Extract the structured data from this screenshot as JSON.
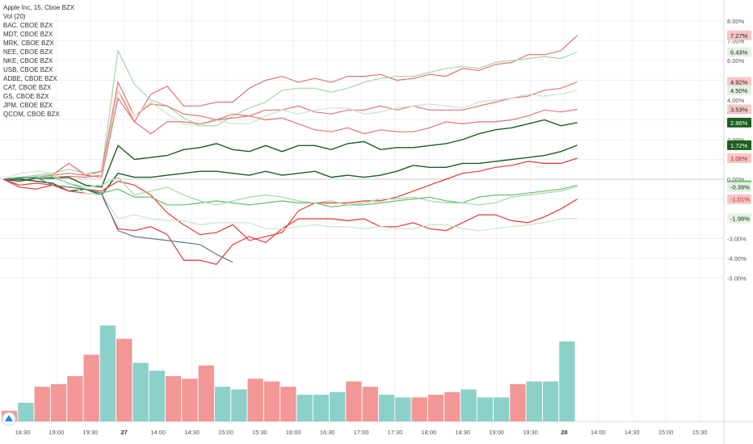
{
  "chart_data": {
    "type": "line",
    "title": "Apple Inc, 15, Cboe BZX",
    "legend_items": [
      "Apple Inc, 15, Cboe BZX",
      "Vol (20)",
      "BAC, CBOE BZX",
      "MDT, CBOE BZX",
      "MRK, CBOE BZX",
      "NEE, CBOE BZX",
      "NKE, CBOE BZX",
      "USB, CBOE BZX",
      "ADBE, CBOE BZX",
      "CAT, CBOE BZX",
      "GS, CBOE BZX",
      "JPM, CBOE BZX",
      "QCOM, CBOE BZX"
    ],
    "legend_position": "top-left",
    "x_labels": [
      "18:30",
      "19:00",
      "19:30",
      "27",
      "14:00",
      "14:30",
      "15:00",
      "15:30",
      "16:00",
      "16:30",
      "17:00",
      "17:30",
      "18:00",
      "18:30",
      "19:00",
      "19:30",
      "28",
      "14:00",
      "14:30",
      "15:00",
      "15:30"
    ],
    "y_ticks": [
      "8.00%",
      "7.00%",
      "6.00%",
      "5.00%",
      "4.00%",
      "3.00%",
      "2.00%",
      "1.00%",
      "0.00%",
      "-1.00%",
      "-2.00%",
      "-3.00%",
      "-4.00%",
      "-5.00%"
    ],
    "y_range": [
      -5.4,
      8.3
    ],
    "series": [
      {
        "color": "#e57373",
        "end_label": "7.27%",
        "values": [
          0,
          -0.1,
          0.05,
          0.1,
          0.15,
          0.1,
          0.2,
          4.5,
          2.9,
          4.3,
          4.7,
          3.7,
          3.7,
          3.9,
          3.9,
          4.6,
          5.0,
          5.2,
          4.9,
          5.1,
          4.9,
          5.2,
          5.2,
          5.3,
          5.0,
          5.1,
          5.3,
          5.2,
          5.6,
          5.5,
          5.8,
          5.9,
          6.3,
          6.3,
          6.5,
          7.27
        ]
      },
      {
        "color": "#a5d6a7",
        "end_label": "6.43%",
        "values": [
          0,
          0.1,
          0.2,
          0.3,
          0.5,
          0.3,
          0.4,
          6.5,
          4.8,
          4.0,
          3.7,
          3.1,
          2.7,
          2.7,
          3.2,
          3.6,
          3.9,
          4.5,
          4.6,
          4.6,
          4.4,
          4.6,
          4.9,
          5.1,
          5.2,
          5.2,
          5.4,
          5.6,
          5.7,
          5.6,
          5.9,
          6.0,
          6.1,
          6.2,
          6.1,
          6.43
        ]
      },
      {
        "color": "#e57373",
        "end_label": "4.92%",
        "values": [
          0,
          0.05,
          0.1,
          0.2,
          0.3,
          0.2,
          0.4,
          4.9,
          3.2,
          3.8,
          3.7,
          3.3,
          3.2,
          3.0,
          3.3,
          3.2,
          3.5,
          3.5,
          3.7,
          3.4,
          3.3,
          3.5,
          3.5,
          3.7,
          3.5,
          3.7,
          3.5,
          3.5,
          3.5,
          3.7,
          3.9,
          4.1,
          4.2,
          4.5,
          4.6,
          4.92
        ]
      },
      {
        "color": "#c8e6c9",
        "end_label": "4.50%",
        "values": [
          0,
          0.05,
          0.15,
          0.25,
          0.8,
          0.3,
          0.2,
          4.5,
          3.2,
          3.9,
          3.3,
          2.8,
          2.7,
          3.0,
          2.8,
          2.8,
          3.2,
          3.5,
          3.3,
          3.5,
          3.6,
          3.6,
          3.3,
          3.4,
          3.6,
          3.7,
          3.8,
          3.7,
          3.6,
          3.9,
          4.0,
          4.1,
          4.3,
          4.2,
          4.3,
          4.5
        ]
      },
      {
        "color": "#e57373",
        "end_label": "3.53%",
        "values": [
          0,
          0.1,
          0.05,
          0.2,
          0.8,
          0.2,
          0.1,
          4.1,
          2.9,
          2.3,
          2.9,
          2.9,
          2.8,
          3.0,
          3.1,
          3.2,
          3.0,
          3.1,
          2.8,
          2.5,
          2.4,
          2.6,
          2.3,
          2.5,
          2.4,
          2.4,
          2.6,
          2.9,
          2.8,
          2.9,
          2.9,
          3.0,
          3.2,
          3.5,
          3.4,
          3.53
        ]
      },
      {
        "color": "#1b5e20",
        "end_label": "2.86%",
        "values": [
          0,
          -0.1,
          0.05,
          0.05,
          0.1,
          -0.3,
          -0.4,
          1.7,
          1.0,
          1.1,
          1.2,
          1.5,
          1.6,
          1.8,
          1.5,
          1.4,
          1.7,
          1.4,
          1.7,
          1.7,
          1.5,
          1.8,
          1.9,
          1.5,
          1.6,
          1.6,
          1.7,
          1.8,
          2.0,
          2.3,
          2.5,
          2.6,
          2.8,
          3.0,
          2.7,
          2.86
        ]
      },
      {
        "color": "#1b5e20",
        "end_label": "1.72%",
        "values": [
          0,
          0,
          -0.1,
          -0.2,
          -0.6,
          -0.5,
          -0.8,
          0.3,
          0.1,
          0.1,
          0.2,
          0.3,
          0.4,
          0.4,
          0.3,
          0.2,
          0.4,
          0.2,
          0.3,
          0.4,
          0.1,
          0.2,
          0.1,
          0.2,
          0.4,
          0.7,
          0.6,
          0.6,
          0.8,
          0.8,
          0.9,
          1.0,
          1.1,
          1.2,
          1.4,
          1.72
        ]
      },
      {
        "color": "#e53935",
        "end_label": "1.06%",
        "values": [
          0,
          -0.3,
          -0.2,
          -0.3,
          -0.4,
          -0.5,
          -0.6,
          -0.1,
          -0.3,
          -0.8,
          -1.7,
          -2.3,
          -2.8,
          -2.7,
          -2.3,
          -3.1,
          -2.9,
          -2.7,
          -1.6,
          -1.2,
          -1.2,
          -1.2,
          -1.1,
          -1.1,
          -0.9,
          -0.6,
          -0.3,
          0,
          0.3,
          0.4,
          0.6,
          0.7,
          0.9,
          0.8,
          0.8,
          1.06
        ]
      },
      {
        "color": "#66bb6a",
        "end_label": "-0.31%",
        "values": [
          0,
          0.1,
          0.05,
          0.1,
          -0.2,
          -0.5,
          -0.7,
          -0.5,
          -0.9,
          -0.9,
          -1.3,
          -1.3,
          -1.2,
          -1.1,
          -1.2,
          -1.3,
          -1.2,
          -1.1,
          -1.2,
          -1.2,
          -1.4,
          -1.3,
          -1.3,
          -1.2,
          -1.1,
          -1.0,
          -0.9,
          -1.1,
          -1.2,
          -0.9,
          -0.8,
          -0.8,
          -0.7,
          -0.6,
          -0.5,
          -0.31
        ]
      },
      {
        "color": "#a5d6a7",
        "end_label": "-0.39%",
        "values": [
          0,
          0.05,
          0.1,
          0.15,
          -0.2,
          -0.4,
          -0.3,
          0.1,
          -0.8,
          -0.6,
          -0.4,
          -0.8,
          -1.1,
          -1.3,
          -1.1,
          -0.9,
          -0.8,
          -0.9,
          -1.1,
          -1.2,
          -1.1,
          -1.3,
          -1.2,
          -1.0,
          -1.0,
          -0.9,
          -1.1,
          -1.2,
          -1.2,
          -1.3,
          -1.2,
          -0.9,
          -0.8,
          -0.7,
          -0.6,
          -0.39
        ]
      },
      {
        "color": "#e53935",
        "end_label": "-1.01%",
        "values": [
          0,
          -0.4,
          -0.5,
          -0.3,
          -0.6,
          -0.7,
          -0.8,
          -2.5,
          -2.6,
          -2.4,
          -2.8,
          -4.1,
          -4.1,
          -4.3,
          -3.3,
          -2.9,
          -3.2,
          -2.5,
          -2.0,
          -2.0,
          -2.0,
          -2.1,
          -2.0,
          -2.4,
          -2.4,
          -2.2,
          -2.5,
          -2.6,
          -2.2,
          -1.8,
          -1.8,
          -2.1,
          -2.2,
          -1.9,
          -1.5,
          -1.01
        ]
      },
      {
        "color": "#c8e6c9",
        "end_label": "-1.98%",
        "values": [
          0,
          0.3,
          0.4,
          0.3,
          -0.3,
          -0.7,
          -0.8,
          -2.0,
          -1.8,
          -2.0,
          -2.1,
          -2.1,
          -2.3,
          -2.2,
          -2.2,
          -2.2,
          -2.5,
          -2.5,
          -2.4,
          -2.3,
          -2.4,
          -2.4,
          -2.5,
          -2.4,
          -2.5,
          -2.5,
          -2.3,
          -2.3,
          -2.5,
          -2.6,
          -2.5,
          -2.4,
          -2.3,
          -2.2,
          -2.0,
          -1.98
        ]
      },
      {
        "color": "#607d8b",
        "end_label": "",
        "values": [
          0,
          0.05,
          0.1,
          -0.3,
          -0.4,
          -0.5,
          -0.7,
          -2.6,
          -2.9,
          -3.0,
          -3.1,
          -3.2,
          -3.3,
          -3.8,
          -4.2
        ]
      }
    ],
    "volume": {
      "values": [
        0.4,
        0.7,
        1.3,
        1.4,
        1.7,
        2.5,
        3.6,
        3.1,
        2.2,
        1.9,
        1.7,
        1.6,
        2.1,
        1.3,
        1.2,
        1.6,
        1.5,
        1.3,
        1.0,
        1.0,
        1.1,
        1.5,
        1.3,
        1.0,
        0.9,
        0.9,
        1.0,
        1.1,
        1.2,
        0.9,
        0.9,
        1.4,
        1.5,
        1.5,
        3.0
      ],
      "colors": [
        "#f28b8b",
        "#80cbc4",
        "#f28b8b",
        "#f28b8b",
        "#f28b8b",
        "#f28b8b",
        "#80cbc4",
        "#f28b8b",
        "#80cbc4",
        "#80cbc4",
        "#f28b8b",
        "#f28b8b",
        "#f28b8b",
        "#80cbc4",
        "#80cbc4",
        "#f28b8b",
        "#f28b8b",
        "#f28b8b",
        "#80cbc4",
        "#80cbc4",
        "#80cbc4",
        "#f28b8b",
        "#f28b8b",
        "#80cbc4",
        "#80cbc4",
        "#f28b8b",
        "#f28b8b",
        "#f28b8b",
        "#80cbc4",
        "#80cbc4",
        "#80cbc4",
        "#f28b8b",
        "#80cbc4",
        "#80cbc4",
        "#80cbc4"
      ]
    },
    "grid": true
  }
}
